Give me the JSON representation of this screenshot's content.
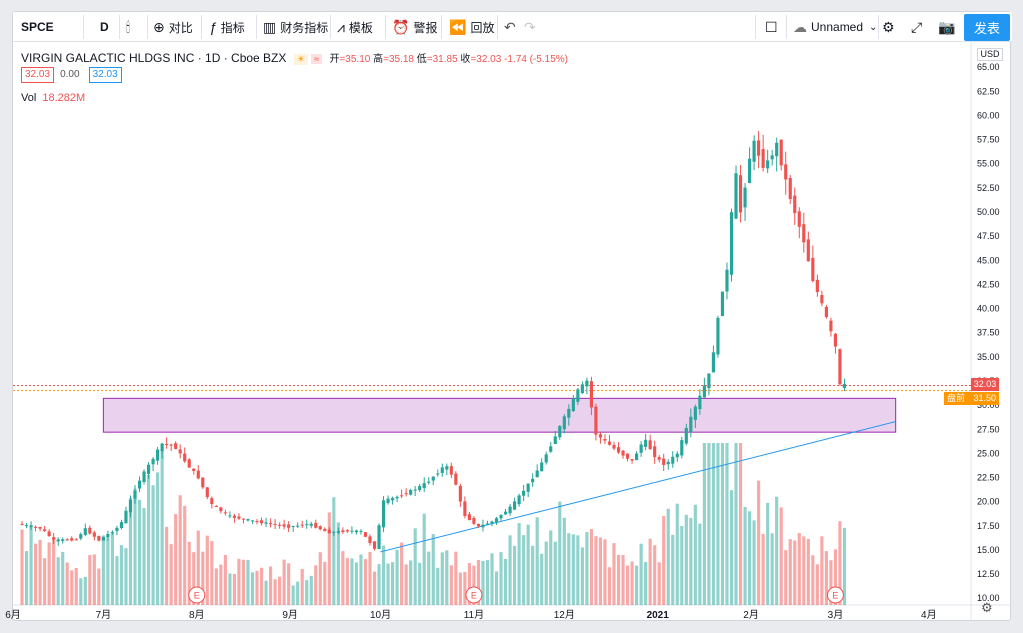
{
  "toolbar": {
    "symbol": "SPCE",
    "interval": "D",
    "compare_label": "对比",
    "indicators_label": "指标",
    "financials_label": "财务指标",
    "templates_label": "模板",
    "alert_label": "警报",
    "replay_label": "回放",
    "layout_name": "Unnamed",
    "publish_label": "发表"
  },
  "legend": {
    "title": "VIRGIN GALACTIC HLDGS INC · 1D · Cboe BZX",
    "open_label": "开",
    "open": "35.10",
    "high_label": "高",
    "high": "35.18",
    "low_label": "低",
    "low": "31.85",
    "close_label": "收",
    "close": "32.03",
    "change": "-1.74 (-5.15%)",
    "bid": "32.03",
    "spread": "0.00",
    "ask": "32.03",
    "vol_label": "Vol",
    "vol_value": "18.282M"
  },
  "price_axis": {
    "currency": "USD",
    "last_price": "32.03",
    "premarket_label": "盘前",
    "premarket_price": "31.50"
  },
  "colors": {
    "up": "#26a69a",
    "down": "#ef5350",
    "zone_fill": "#e1bee7",
    "zone_border": "#9c27b0",
    "trendline": "#2196f3",
    "premarket": "#ff9800"
  },
  "chart_data": {
    "type": "candlestick",
    "title": "VIRGIN GALACTIC HLDGS INC · 1D · Cboe BZX",
    "y_ticks": [
      10.0,
      12.5,
      15.0,
      17.5,
      20.0,
      22.5,
      25.0,
      27.5,
      30.0,
      32.5,
      35.0,
      37.5,
      40.0,
      42.5,
      45.0,
      47.5,
      50.0,
      52.5,
      55.0,
      57.5,
      60.0,
      62.5,
      65.0
    ],
    "ylim": [
      9.3,
      67.5
    ],
    "x_ticks": [
      "6月",
      "7月",
      "8月",
      "9月",
      "10月",
      "11月",
      "12月",
      "2021",
      "2月",
      "3月",
      "4月"
    ],
    "x_tick_days": [
      -3,
      27,
      58,
      89,
      119,
      150,
      180,
      211,
      242,
      270,
      301
    ],
    "xlim": [
      -3,
      315
    ],
    "last_day": 273,
    "price_points": [
      [
        0,
        17.7
      ],
      [
        8,
        17.2
      ],
      [
        12,
        16.0
      ],
      [
        20,
        16.1
      ],
      [
        22,
        17.3
      ],
      [
        27,
        16.0
      ],
      [
        34,
        17.5
      ],
      [
        40,
        22.0
      ],
      [
        45,
        24.5
      ],
      [
        48,
        26.0
      ],
      [
        52,
        25.8
      ],
      [
        56,
        24.0
      ],
      [
        60,
        22.5
      ],
      [
        64,
        19.8
      ],
      [
        70,
        18.5
      ],
      [
        80,
        17.9
      ],
      [
        90,
        17.4
      ],
      [
        97,
        17.7
      ],
      [
        103,
        16.8
      ],
      [
        110,
        17.0
      ],
      [
        114,
        16.9
      ],
      [
        119,
        15.0
      ],
      [
        121,
        20.0
      ],
      [
        126,
        20.5
      ],
      [
        132,
        21.3
      ],
      [
        136,
        22.0
      ],
      [
        142,
        23.8
      ],
      [
        145,
        22.4
      ],
      [
        148,
        18.7
      ],
      [
        153,
        17.4
      ],
      [
        158,
        18.0
      ],
      [
        164,
        19.5
      ],
      [
        170,
        22.0
      ],
      [
        174,
        24.0
      ],
      [
        178,
        26.5
      ],
      [
        182,
        29.0
      ],
      [
        186,
        31.5
      ],
      [
        189,
        32.5
      ],
      [
        192,
        27.0
      ],
      [
        198,
        25.5
      ],
      [
        204,
        24.2
      ],
      [
        208,
        26.5
      ],
      [
        212,
        24.5
      ],
      [
        215,
        23.8
      ],
      [
        219,
        25.0
      ],
      [
        222,
        27.5
      ],
      [
        226,
        30.5
      ],
      [
        230,
        33.5
      ],
      [
        234,
        42.0
      ],
      [
        236,
        44.5
      ],
      [
        238,
        55.0
      ],
      [
        240,
        50.0
      ],
      [
        244,
        57.5
      ],
      [
        248,
        54.5
      ],
      [
        252,
        57.0
      ],
      [
        256,
        52.0
      ],
      [
        261,
        47.0
      ],
      [
        264,
        43.0
      ],
      [
        268,
        39.5
      ],
      [
        272,
        35.5
      ],
      [
        273,
        32.03
      ]
    ],
    "candles_overnight": 0,
    "volume_ylim": [
      0,
      35
    ],
    "volume_million": [
      18,
      12,
      15,
      10,
      9,
      11,
      14,
      13,
      22,
      25,
      28,
      20,
      18,
      15,
      12,
      10,
      9,
      8,
      8,
      9,
      7,
      8,
      10,
      22,
      15,
      13,
      12,
      11,
      12,
      14,
      18,
      12,
      10,
      10,
      9,
      11,
      13,
      15,
      18,
      17,
      20,
      22,
      16,
      14,
      12,
      10,
      12,
      14,
      18,
      20,
      25,
      45,
      35,
      40,
      30,
      25,
      20,
      18,
      16,
      14,
      13,
      18
    ],
    "zone": {
      "top": 30.7,
      "bottom": 27.2,
      "x_start_day": 27,
      "x_end_day": 290
    },
    "trendline": {
      "start": [
        119,
        14.8
      ],
      "end": [
        290,
        28.3
      ]
    },
    "earnings_markers_days": [
      58,
      150,
      270
    ],
    "earnings_label": "E",
    "premarket_price": 31.5,
    "last_price": 32.03
  }
}
